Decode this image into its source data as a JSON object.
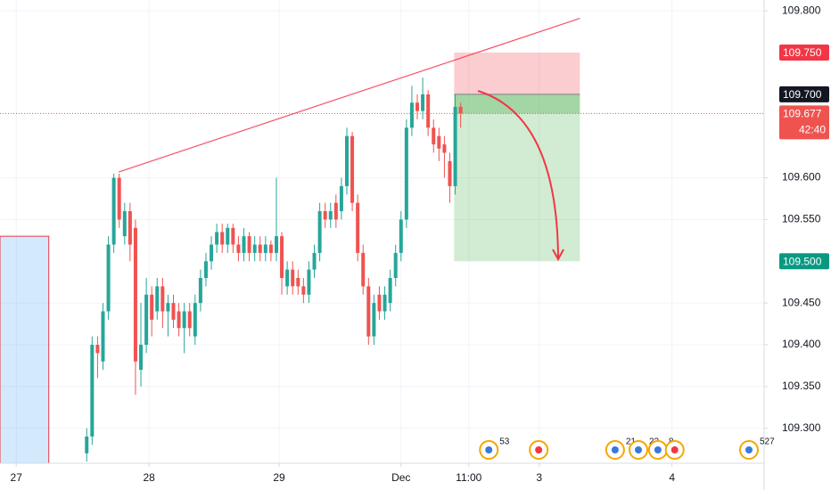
{
  "chart_data": {
    "type": "candlestick",
    "x": [
      13,
      14,
      15,
      16,
      17,
      18,
      19,
      20,
      21,
      22,
      23,
      24,
      25,
      26,
      27,
      28,
      29,
      30,
      31,
      32,
      33,
      34,
      35,
      36,
      37,
      38,
      39,
      40,
      41,
      42,
      43,
      44,
      45,
      46,
      47,
      48,
      49,
      50,
      51,
      52,
      53,
      54,
      55,
      56,
      57,
      58,
      59,
      60,
      61,
      62,
      63,
      64,
      65,
      66,
      67,
      68,
      69,
      70,
      71,
      72,
      73,
      74,
      75,
      76,
      77,
      78,
      79,
      80,
      81,
      82
    ],
    "open": [
      109.27,
      109.29,
      109.4,
      109.38,
      109.44,
      109.52,
      109.6,
      109.53,
      109.56,
      109.54,
      109.37,
      109.4,
      109.46,
      109.44,
      109.47,
      109.44,
      109.45,
      109.44,
      109.42,
      109.44,
      109.41,
      109.45,
      109.48,
      109.5,
      109.52,
      109.535,
      109.52,
      109.54,
      109.52,
      109.51,
      109.53,
      109.51,
      109.52,
      109.51,
      109.52,
      109.51,
      109.53,
      109.47,
      109.49,
      109.48,
      109.47,
      109.46,
      109.49,
      109.51,
      109.56,
      109.55,
      109.57,
      109.56,
      109.59,
      109.65,
      109.57,
      109.51,
      109.47,
      109.41,
      109.46,
      109.44,
      109.45,
      109.48,
      109.51,
      109.55,
      109.66,
      109.69,
      109.68,
      109.7,
      109.66,
      109.65,
      109.64,
      109.62,
      109.59,
      109.685
    ],
    "high": [
      109.3,
      109.41,
      109.41,
      109.45,
      109.53,
      109.605,
      109.605,
      109.57,
      109.57,
      109.55,
      109.45,
      109.48,
      109.47,
      109.48,
      109.48,
      109.46,
      109.46,
      109.45,
      109.45,
      109.45,
      109.46,
      109.49,
      109.51,
      109.53,
      109.545,
      109.545,
      109.545,
      109.545,
      109.53,
      109.54,
      109.535,
      109.53,
      109.53,
      109.53,
      109.525,
      109.6,
      109.535,
      109.5,
      109.5,
      109.49,
      109.48,
      109.5,
      109.52,
      109.57,
      109.57,
      109.57,
      109.58,
      109.6,
      109.66,
      109.655,
      109.58,
      109.52,
      109.48,
      109.46,
      109.47,
      109.47,
      109.49,
      109.52,
      109.56,
      109.67,
      109.71,
      109.7,
      109.72,
      109.705,
      109.67,
      109.66,
      109.65,
      109.63,
      109.7,
      109.69
    ],
    "low": [
      109.26,
      109.28,
      109.36,
      109.37,
      109.43,
      109.51,
      109.54,
      109.52,
      109.5,
      109.34,
      109.35,
      109.39,
      109.41,
      109.43,
      109.42,
      109.41,
      109.42,
      109.41,
      109.39,
      109.41,
      109.4,
      109.44,
      109.47,
      109.49,
      109.51,
      109.51,
      109.51,
      109.51,
      109.5,
      109.5,
      109.5,
      109.5,
      109.5,
      109.5,
      109.5,
      109.5,
      109.46,
      109.46,
      109.46,
      109.46,
      109.45,
      109.45,
      109.48,
      109.5,
      109.54,
      109.54,
      109.54,
      109.55,
      109.58,
      109.56,
      109.5,
      109.46,
      109.4,
      109.4,
      109.43,
      109.43,
      109.44,
      109.47,
      109.5,
      109.54,
      109.65,
      109.67,
      109.67,
      109.65,
      109.63,
      109.62,
      109.6,
      109.57,
      109.58,
      109.66
    ],
    "close": [
      109.29,
      109.4,
      109.39,
      109.44,
      109.52,
      109.6,
      109.55,
      109.56,
      109.52,
      109.38,
      109.4,
      109.46,
      109.43,
      109.47,
      109.44,
      109.45,
      109.43,
      109.42,
      109.44,
      109.42,
      109.45,
      109.48,
      109.5,
      109.52,
      109.535,
      109.52,
      109.54,
      109.52,
      109.51,
      109.53,
      109.51,
      109.52,
      109.51,
      109.52,
      109.51,
      109.53,
      109.48,
      109.49,
      109.47,
      109.47,
      109.46,
      109.49,
      109.51,
      109.56,
      109.55,
      109.56,
      109.55,
      109.59,
      109.65,
      109.57,
      109.51,
      109.47,
      109.41,
      109.45,
      109.44,
      109.46,
      109.48,
      109.51,
      109.55,
      109.66,
      109.69,
      109.68,
      109.7,
      109.66,
      109.64,
      109.635,
      109.63,
      109.59,
      109.685,
      109.677
    ],
    "up_color": "#26a69a",
    "down_color": "#ef5350",
    "xlim": [
      -3,
      138
    ],
    "ylim": [
      109.258,
      109.813
    ],
    "xticks": [
      {
        "value": 0,
        "label": "27"
      },
      {
        "value": 24.5,
        "label": "28"
      },
      {
        "value": 48.5,
        "label": "29"
      },
      {
        "value": 71,
        "label": "Dec"
      },
      {
        "value": 83.5,
        "label": "11:00"
      },
      {
        "value": 96.5,
        "label": "3"
      },
      {
        "value": 121,
        "label": "4"
      }
    ],
    "yticks": [
      {
        "value": 109.3,
        "label": "109.300"
      },
      {
        "value": 109.35,
        "label": "109.350"
      },
      {
        "value": 109.4,
        "label": "109.400"
      },
      {
        "value": 109.45,
        "label": "109.450"
      },
      {
        "value": 109.55,
        "label": "109.550"
      },
      {
        "value": 109.6,
        "label": "109.600"
      },
      {
        "value": 109.8,
        "label": "109.800"
      }
    ],
    "grid": true,
    "levels": [
      {
        "value": 109.75,
        "label": "109.750",
        "color": "#f23645"
      },
      {
        "value": 109.7,
        "label": "109.700",
        "color": "#131722"
      },
      {
        "value": 109.5,
        "label": "109.500",
        "color": "#089981"
      }
    ],
    "current_price": {
      "value": 109.677,
      "label": "109.677",
      "countdown": "42:40",
      "color": "#ef5350"
    },
    "position": {
      "x": [
        80.8,
        104
      ],
      "entry": 109.7,
      "stop": 109.75,
      "target": 109.5
    },
    "trendline": {
      "x": [
        18.9,
        104
      ],
      "y": [
        109.607,
        109.791
      ],
      "color": "#f7525f"
    },
    "box": {
      "x": [
        -3,
        6
      ],
      "top": 109.53
    },
    "events": [
      {
        "x": 87.2,
        "label": "53"
      },
      {
        "x": 96.4
      },
      {
        "x": 110.5,
        "label": "21"
      },
      {
        "x": 114.8,
        "label": "23"
      },
      {
        "x": 118.4,
        "label": "8"
      },
      {
        "x": 121.5
      },
      {
        "x": 135.2,
        "label": "527"
      }
    ]
  }
}
